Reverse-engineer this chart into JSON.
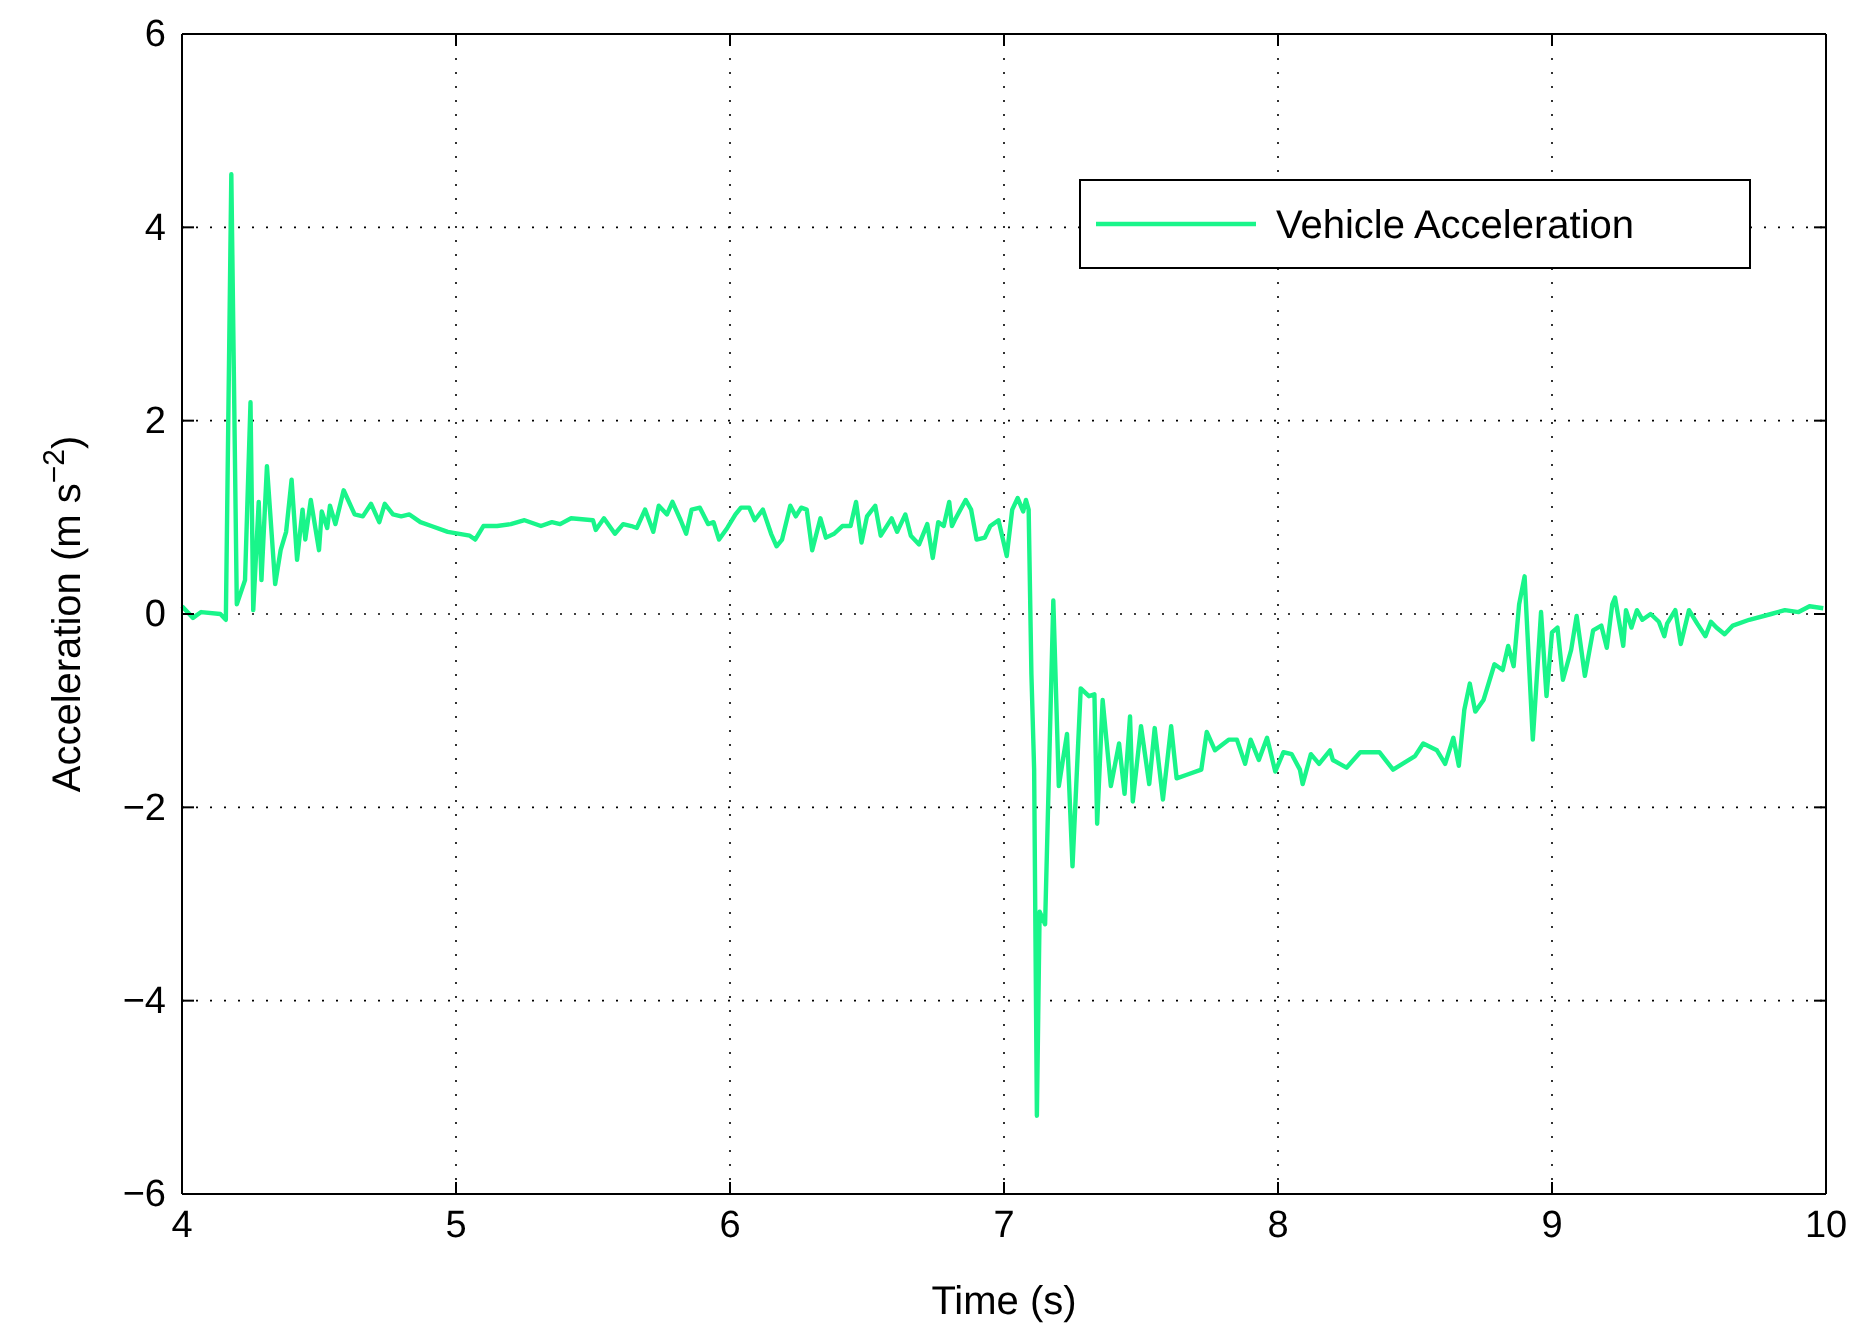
{
  "chart_data": {
    "type": "line",
    "xlabel": "Time (s)",
    "ylabel": "Acceleration (m s$^{−2}$)",
    "xlim": [
      4,
      10
    ],
    "xticks": [
      4,
      5,
      6,
      7,
      8,
      9,
      10
    ],
    "ylim": [
      -6,
      6
    ],
    "yticks": [
      {
        "value": -6,
        "label": "−6"
      },
      {
        "value": -4,
        "label": "−4"
      },
      {
        "value": -2,
        "label": "−2"
      },
      0,
      2,
      4,
      6
    ],
    "grid": true,
    "legend": "top right",
    "series": [
      {
        "name": "Vehicle Acceleration",
        "color": "#19f58a",
        "x": [
          4.0,
          4.04,
          4.07,
          4.14,
          4.16,
          4.18,
          4.2,
          4.23,
          4.25,
          4.26,
          4.28,
          4.29,
          4.31,
          4.34,
          4.36,
          4.38,
          4.4,
          4.42,
          4.44,
          4.45,
          4.47,
          4.5,
          4.51,
          4.53,
          4.54,
          4.56,
          4.59,
          4.63,
          4.66,
          4.69,
          4.72,
          4.74,
          4.77,
          4.8,
          4.83,
          4.87,
          4.91,
          4.97,
          5.05,
          5.07,
          5.1,
          5.15,
          5.2,
          5.25,
          5.31,
          5.35,
          5.38,
          5.42,
          5.5,
          5.51,
          5.54,
          5.58,
          5.61,
          5.64,
          5.66,
          5.69,
          5.72,
          5.74,
          5.77,
          5.79,
          5.82,
          5.84,
          5.86,
          5.89,
          5.92,
          5.94,
          5.96,
          5.99,
          6.02,
          6.04,
          6.07,
          6.09,
          6.12,
          6.15,
          6.17,
          6.19,
          6.22,
          6.24,
          6.26,
          6.28,
          6.3,
          6.33,
          6.35,
          6.38,
          6.41,
          6.44,
          6.46,
          6.48,
          6.5,
          6.53,
          6.55,
          6.59,
          6.61,
          6.64,
          6.66,
          6.69,
          6.72,
          6.74,
          6.76,
          6.78,
          6.8,
          6.81,
          6.82,
          6.86,
          6.88,
          6.9,
          6.93,
          6.95,
          6.98,
          7.01,
          7.03,
          7.05,
          7.07,
          7.08,
          7.09,
          7.1,
          7.11,
          7.12,
          7.13,
          7.15,
          7.18,
          7.2,
          7.23,
          7.25,
          7.28,
          7.31,
          7.33,
          7.34,
          7.36,
          7.39,
          7.42,
          7.44,
          7.46,
          7.47,
          7.5,
          7.53,
          7.55,
          7.58,
          7.61,
          7.63,
          7.67,
          7.72,
          7.74,
          7.77,
          7.82,
          7.85,
          7.88,
          7.9,
          7.93,
          7.96,
          7.99,
          8.02,
          8.05,
          8.08,
          8.09,
          8.12,
          8.15,
          8.19,
          8.2,
          8.25,
          8.3,
          8.37,
          8.42,
          8.5,
          8.53,
          8.58,
          8.61,
          8.64,
          8.66,
          8.68,
          8.7,
          8.72,
          8.75,
          8.79,
          8.82,
          8.84,
          8.86,
          8.88,
          8.9,
          8.93,
          8.96,
          8.98,
          9.0,
          9.02,
          9.04,
          9.07,
          9.09,
          9.12,
          9.15,
          9.18,
          9.2,
          9.22,
          9.23,
          9.26,
          9.27,
          9.29,
          9.31,
          9.33,
          9.36,
          9.39,
          9.41,
          9.42,
          9.45,
          9.47,
          9.5,
          9.53,
          9.56,
          9.58,
          9.6,
          9.63,
          9.66,
          9.72,
          9.8,
          9.85,
          9.9,
          9.94,
          9.99
        ],
        "values": [
          0.08,
          -0.04,
          0.02,
          0.0,
          -0.06,
          4.55,
          0.1,
          0.35,
          2.19,
          0.04,
          1.16,
          0.35,
          1.53,
          0.31,
          0.66,
          0.85,
          1.39,
          0.56,
          1.08,
          0.77,
          1.18,
          0.66,
          1.06,
          0.89,
          1.12,
          0.93,
          1.28,
          1.03,
          1.01,
          1.14,
          0.95,
          1.14,
          1.03,
          1.01,
          1.03,
          0.95,
          0.91,
          0.85,
          0.81,
          0.77,
          0.91,
          0.91,
          0.93,
          0.97,
          0.91,
          0.95,
          0.93,
          0.99,
          0.97,
          0.87,
          0.99,
          0.83,
          0.93,
          0.91,
          0.89,
          1.08,
          0.85,
          1.12,
          1.03,
          1.16,
          0.97,
          0.83,
          1.08,
          1.1,
          0.93,
          0.95,
          0.77,
          0.89,
          1.03,
          1.1,
          1.1,
          0.97,
          1.08,
          0.83,
          0.7,
          0.77,
          1.12,
          1.01,
          1.1,
          1.08,
          0.66,
          0.99,
          0.79,
          0.83,
          0.91,
          0.91,
          1.16,
          0.74,
          1.01,
          1.12,
          0.81,
          0.99,
          0.85,
          1.03,
          0.81,
          0.72,
          0.93,
          0.58,
          0.95,
          0.91,
          1.16,
          0.91,
          0.97,
          1.18,
          1.08,
          0.77,
          0.79,
          0.91,
          0.97,
          0.6,
          1.08,
          1.2,
          1.06,
          1.18,
          1.08,
          -0.62,
          -1.61,
          -5.19,
          -3.08,
          -3.21,
          0.14,
          -1.78,
          -1.24,
          -2.61,
          -0.77,
          -0.85,
          -0.83,
          -2.17,
          -0.89,
          -1.78,
          -1.34,
          -1.86,
          -1.06,
          -1.94,
          -1.16,
          -1.76,
          -1.18,
          -1.92,
          -1.16,
          -1.7,
          -1.66,
          -1.61,
          -1.22,
          -1.41,
          -1.3,
          -1.3,
          -1.55,
          -1.3,
          -1.51,
          -1.28,
          -1.63,
          -1.43,
          -1.45,
          -1.61,
          -1.76,
          -1.45,
          -1.55,
          -1.41,
          -1.51,
          -1.59,
          -1.43,
          -1.43,
          -1.61,
          -1.47,
          -1.34,
          -1.41,
          -1.55,
          -1.28,
          -1.57,
          -0.99,
          -0.72,
          -1.01,
          -0.89,
          -0.52,
          -0.58,
          -0.33,
          -0.54,
          0.1,
          0.39,
          -1.3,
          0.02,
          -0.85,
          -0.19,
          -0.14,
          -0.68,
          -0.37,
          -0.02,
          -0.64,
          -0.17,
          -0.12,
          -0.35,
          0.1,
          0.17,
          -0.33,
          0.04,
          -0.14,
          0.04,
          -0.06,
          0.0,
          -0.08,
          -0.23,
          -0.1,
          0.04,
          -0.31,
          0.04,
          -0.1,
          -0.23,
          -0.08,
          -0.14,
          -0.21,
          -0.12,
          -0.06,
          0.0,
          0.04,
          0.02,
          0.08,
          0.06
        ]
      }
    ]
  }
}
